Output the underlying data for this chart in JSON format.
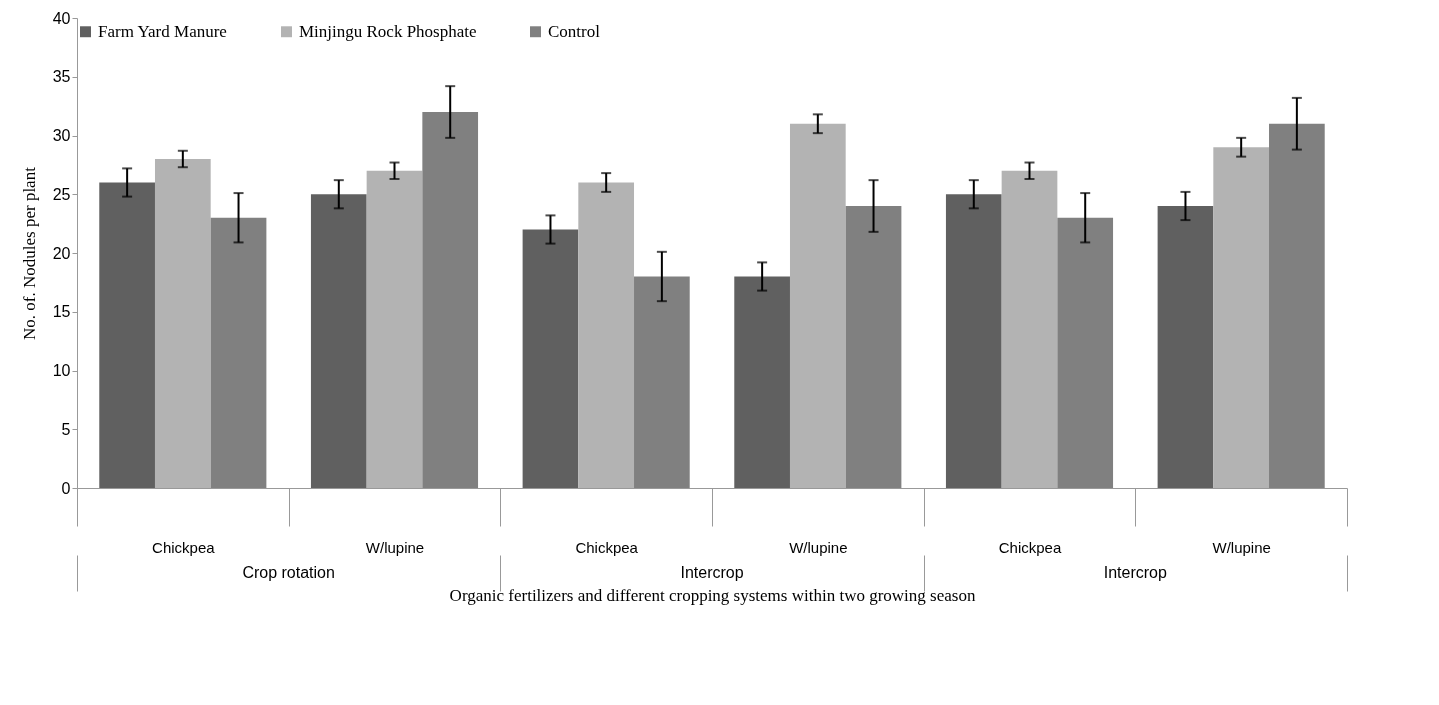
{
  "chart_data": {
    "type": "bar",
    "categories": [
      "Chickpea",
      "W/lupine",
      "Chickpea",
      "W/lupine",
      "Chickpea",
      "W/lupine"
    ],
    "series": [
      {
        "name": "Farm Yard Manure",
        "color": "#606060",
        "values": [
          26,
          25,
          22,
          18,
          25,
          24
        ],
        "errors": [
          1.2,
          1.2,
          1.2,
          1.2,
          1.2,
          1.2
        ]
      },
      {
        "name": "Minjingu Rock Phosphate",
        "color": "#b3b3b3",
        "values": [
          28,
          27,
          26,
          31,
          27,
          29
        ],
        "errors": [
          0.7,
          0.7,
          0.8,
          0.8,
          0.7,
          0.8
        ]
      },
      {
        "name": "Control",
        "color": "#808080",
        "values": [
          23,
          32,
          18,
          24,
          23,
          31
        ],
        "errors": [
          2.1,
          2.2,
          2.1,
          2.2,
          2.1,
          2.2
        ]
      }
    ],
    "ylabel": "No. of. Nodules per plant",
    "xlabel": "Organic fertilizers and different cropping systems within two growing season",
    "annotations": [
      "Crop rotation",
      "Intercrop",
      "Intercrop"
    ],
    "ylim": [
      0,
      40
    ],
    "yticks": [
      0,
      5,
      10,
      15,
      20,
      25,
      30,
      35,
      40
    ],
    "legend": "top",
    "grid": false
  }
}
